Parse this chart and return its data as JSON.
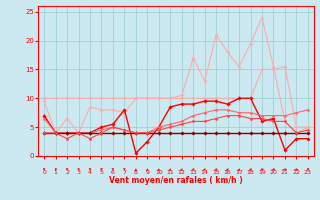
{
  "x": [
    0,
    1,
    2,
    3,
    4,
    5,
    6,
    7,
    8,
    9,
    10,
    11,
    12,
    13,
    14,
    15,
    16,
    17,
    18,
    19,
    20,
    21,
    22,
    23
  ],
  "lines": [
    {
      "y": [
        10.0,
        10.0,
        10.0,
        10.0,
        10.0,
        10.0,
        10.0,
        10.0,
        10.0,
        10.0,
        10.0,
        10.0,
        10.0,
        10.0,
        10.0,
        10.0,
        10.0,
        10.0,
        10.0,
        15.0,
        15.0,
        15.5,
        5.0,
        5.0
      ],
      "color": "#ffaaaa",
      "lw": 0.8,
      "marker": "D",
      "ms": 1.5
    },
    {
      "y": [
        9.5,
        4.0,
        6.5,
        4.0,
        8.5,
        8.0,
        8.0,
        7.5,
        10.0,
        10.0,
        10.0,
        10.0,
        10.5,
        17.0,
        13.0,
        21.0,
        18.0,
        15.5,
        19.5,
        24.0,
        15.5,
        6.0,
        4.0,
        5.0
      ],
      "color": "#ffaaaa",
      "lw": 0.8,
      "marker": "D",
      "ms": 1.5
    },
    {
      "y": [
        7.0,
        4.0,
        4.0,
        4.0,
        4.0,
        5.0,
        5.5,
        8.0,
        0.5,
        2.5,
        5.0,
        8.5,
        9.0,
        9.0,
        9.5,
        9.5,
        9.0,
        10.0,
        10.0,
        6.0,
        6.5,
        1.0,
        3.0,
        3.0
      ],
      "color": "#ff0000",
      "lw": 1.0,
      "marker": "D",
      "ms": 1.8
    },
    {
      "y": [
        6.5,
        4.0,
        4.0,
        4.0,
        4.0,
        4.5,
        5.0,
        4.5,
        4.0,
        4.0,
        5.0,
        5.5,
        6.0,
        7.0,
        7.5,
        8.0,
        8.0,
        7.5,
        7.5,
        7.0,
        7.0,
        7.0,
        7.5,
        8.0
      ],
      "color": "#ff6666",
      "lw": 0.8,
      "marker": "D",
      "ms": 1.5
    },
    {
      "y": [
        4.0,
        4.0,
        4.0,
        4.0,
        4.0,
        4.0,
        4.0,
        4.0,
        4.0,
        4.0,
        4.0,
        4.0,
        4.0,
        4.0,
        4.0,
        4.0,
        4.0,
        4.0,
        4.0,
        4.0,
        4.0,
        4.0,
        4.0,
        4.0
      ],
      "color": "#880000",
      "lw": 1.0,
      "marker": "D",
      "ms": 1.8
    },
    {
      "y": [
        4.0,
        4.0,
        3.0,
        4.0,
        3.0,
        4.0,
        5.0,
        4.5,
        4.0,
        4.0,
        4.5,
        5.0,
        5.5,
        6.0,
        6.0,
        6.5,
        7.0,
        7.0,
        6.5,
        6.5,
        6.0,
        6.0,
        4.0,
        4.5
      ],
      "color": "#ff4444",
      "lw": 0.8,
      "marker": "D",
      "ms": 1.5
    }
  ],
  "xlabel_text": "Vent moyen/en rafales ( km/h )",
  "ylim": [
    0,
    26
  ],
  "xlim": [
    -0.5,
    23.5
  ],
  "yticks": [
    0,
    5,
    10,
    15,
    20,
    25
  ],
  "xticks": [
    0,
    1,
    2,
    3,
    4,
    5,
    6,
    7,
    8,
    9,
    10,
    11,
    12,
    13,
    14,
    15,
    16,
    17,
    18,
    19,
    20,
    21,
    22,
    23
  ],
  "bg_color": "#cce8f0",
  "grid_color": "#99cccc",
  "arrow_color": "#ff0000",
  "axis_color": "#ff0000",
  "label_color": "#ff0000",
  "tick_color": "#ff0000",
  "wind_dirs": [
    180,
    200,
    180,
    190,
    180,
    180,
    175,
    175,
    5,
    5,
    15,
    20,
    30,
    50,
    35,
    50,
    35,
    20,
    50,
    65,
    75,
    85,
    90,
    200
  ]
}
